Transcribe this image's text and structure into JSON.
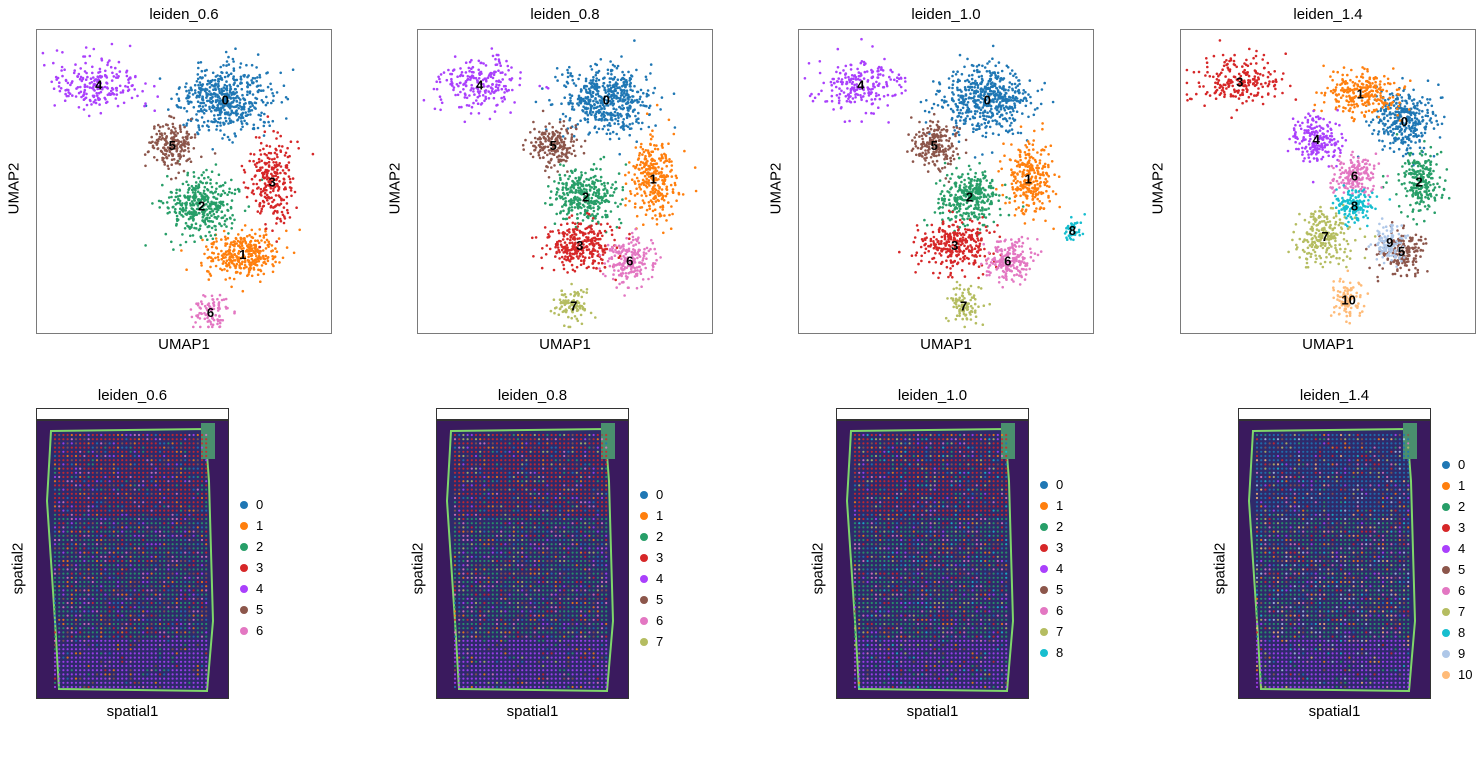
{
  "colors": [
    "#1f77b4",
    "#ff7f0e",
    "#279e68",
    "#d62728",
    "#aa40fc",
    "#8c564b",
    "#e377c2",
    "#b5bd61",
    "#17becf",
    "#aec7e8",
    "#ffbb78"
  ],
  "chart_data": [
    {
      "type": "scatter",
      "title": "leiden_0.6",
      "xlabel": "UMAP1",
      "ylabel": "UMAP2",
      "clusters": [
        {
          "label": "0",
          "center": [
            0.64,
            0.23
          ],
          "spread": [
            0.14,
            0.1
          ],
          "n": 520
        },
        {
          "label": "1",
          "center": [
            0.7,
            0.74
          ],
          "spread": [
            0.12,
            0.07
          ],
          "n": 330
        },
        {
          "label": "2",
          "center": [
            0.56,
            0.58
          ],
          "spread": [
            0.11,
            0.09
          ],
          "n": 380
        },
        {
          "label": "3",
          "center": [
            0.8,
            0.5
          ],
          "spread": [
            0.07,
            0.12
          ],
          "n": 260
        },
        {
          "label": "4",
          "center": [
            0.21,
            0.18
          ],
          "spread": [
            0.14,
            0.08
          ],
          "n": 220
        },
        {
          "label": "5",
          "center": [
            0.46,
            0.38
          ],
          "spread": [
            0.07,
            0.07
          ],
          "n": 200
        },
        {
          "label": "6",
          "center": [
            0.59,
            0.93
          ],
          "spread": [
            0.06,
            0.05
          ],
          "n": 90
        }
      ]
    },
    {
      "type": "scatter",
      "title": "leiden_0.8",
      "xlabel": "UMAP1",
      "ylabel": "UMAP2",
      "clusters": [
        {
          "label": "0",
          "center": [
            0.64,
            0.23
          ],
          "spread": [
            0.14,
            0.1
          ],
          "n": 520
        },
        {
          "label": "1",
          "center": [
            0.8,
            0.49
          ],
          "spread": [
            0.07,
            0.12
          ],
          "n": 300
        },
        {
          "label": "2",
          "center": [
            0.57,
            0.55
          ],
          "spread": [
            0.1,
            0.08
          ],
          "n": 330
        },
        {
          "label": "3",
          "center": [
            0.55,
            0.71
          ],
          "spread": [
            0.11,
            0.08
          ],
          "n": 300
        },
        {
          "label": "4",
          "center": [
            0.21,
            0.18
          ],
          "spread": [
            0.14,
            0.08
          ],
          "n": 220
        },
        {
          "label": "5",
          "center": [
            0.46,
            0.38
          ],
          "spread": [
            0.07,
            0.07
          ],
          "n": 200
        },
        {
          "label": "6",
          "center": [
            0.72,
            0.76
          ],
          "spread": [
            0.07,
            0.07
          ],
          "n": 200
        },
        {
          "label": "7",
          "center": [
            0.53,
            0.91
          ],
          "spread": [
            0.06,
            0.06
          ],
          "n": 100
        }
      ]
    },
    {
      "type": "scatter",
      "title": "leiden_1.0",
      "xlabel": "UMAP1",
      "ylabel": "UMAP2",
      "clusters": [
        {
          "label": "0",
          "center": [
            0.64,
            0.23
          ],
          "spread": [
            0.14,
            0.1
          ],
          "n": 520
        },
        {
          "label": "1",
          "center": [
            0.78,
            0.49
          ],
          "spread": [
            0.07,
            0.11
          ],
          "n": 280
        },
        {
          "label": "2",
          "center": [
            0.58,
            0.55
          ],
          "spread": [
            0.1,
            0.08
          ],
          "n": 330
        },
        {
          "label": "3",
          "center": [
            0.53,
            0.71
          ],
          "spread": [
            0.11,
            0.08
          ],
          "n": 300
        },
        {
          "label": "4",
          "center": [
            0.21,
            0.18
          ],
          "spread": [
            0.14,
            0.08
          ],
          "n": 220
        },
        {
          "label": "5",
          "center": [
            0.46,
            0.38
          ],
          "spread": [
            0.07,
            0.07
          ],
          "n": 200
        },
        {
          "label": "6",
          "center": [
            0.71,
            0.76
          ],
          "spread": [
            0.07,
            0.07
          ],
          "n": 200
        },
        {
          "label": "7",
          "center": [
            0.56,
            0.91
          ],
          "spread": [
            0.06,
            0.06
          ],
          "n": 100
        },
        {
          "label": "8",
          "center": [
            0.93,
            0.66
          ],
          "spread": [
            0.03,
            0.03
          ],
          "n": 40
        }
      ]
    },
    {
      "type": "scatter",
      "title": "leiden_1.4",
      "xlabel": "UMAP1",
      "ylabel": "UMAP2",
      "clusters": [
        {
          "label": "0",
          "center": [
            0.76,
            0.3
          ],
          "spread": [
            0.1,
            0.1
          ],
          "n": 330
        },
        {
          "label": "1",
          "center": [
            0.61,
            0.21
          ],
          "spread": [
            0.12,
            0.07
          ],
          "n": 260
        },
        {
          "label": "2",
          "center": [
            0.81,
            0.5
          ],
          "spread": [
            0.07,
            0.09
          ],
          "n": 230
        },
        {
          "label": "3",
          "center": [
            0.2,
            0.17
          ],
          "spread": [
            0.14,
            0.08
          ],
          "n": 220
        },
        {
          "label": "4",
          "center": [
            0.46,
            0.36
          ],
          "spread": [
            0.08,
            0.07
          ],
          "n": 200
        },
        {
          "label": "5",
          "center": [
            0.75,
            0.73
          ],
          "spread": [
            0.07,
            0.07
          ],
          "n": 190
        },
        {
          "label": "6",
          "center": [
            0.59,
            0.48
          ],
          "spread": [
            0.07,
            0.06
          ],
          "n": 180
        },
        {
          "label": "7",
          "center": [
            0.49,
            0.68
          ],
          "spread": [
            0.08,
            0.09
          ],
          "n": 220
        },
        {
          "label": "8",
          "center": [
            0.59,
            0.58
          ],
          "spread": [
            0.06,
            0.05
          ],
          "n": 140
        },
        {
          "label": "9",
          "center": [
            0.71,
            0.7
          ],
          "spread": [
            0.05,
            0.06
          ],
          "n": 120
        },
        {
          "label": "10",
          "center": [
            0.57,
            0.89
          ],
          "spread": [
            0.05,
            0.06
          ],
          "n": 100
        }
      ]
    },
    {
      "type": "scatter",
      "title": "leiden_0.6",
      "xlabel": "spatial1",
      "ylabel": "spatial2",
      "legend": [
        "0",
        "1",
        "2",
        "3",
        "4",
        "5",
        "6"
      ]
    },
    {
      "type": "scatter",
      "title": "leiden_0.8",
      "xlabel": "spatial1",
      "ylabel": "spatial2",
      "legend": [
        "0",
        "1",
        "2",
        "3",
        "4",
        "5",
        "6",
        "7"
      ]
    },
    {
      "type": "scatter",
      "title": "leiden_1.0",
      "xlabel": "spatial1",
      "ylabel": "spatial2",
      "legend": [
        "0",
        "1",
        "2",
        "3",
        "4",
        "5",
        "6",
        "7",
        "8"
      ]
    },
    {
      "type": "scatter",
      "title": "leiden_1.4",
      "xlabel": "spatial1",
      "ylabel": "spatial2",
      "legend": [
        "0",
        "1",
        "2",
        "3",
        "4",
        "5",
        "6",
        "7",
        "8",
        "9",
        "10"
      ]
    }
  ]
}
